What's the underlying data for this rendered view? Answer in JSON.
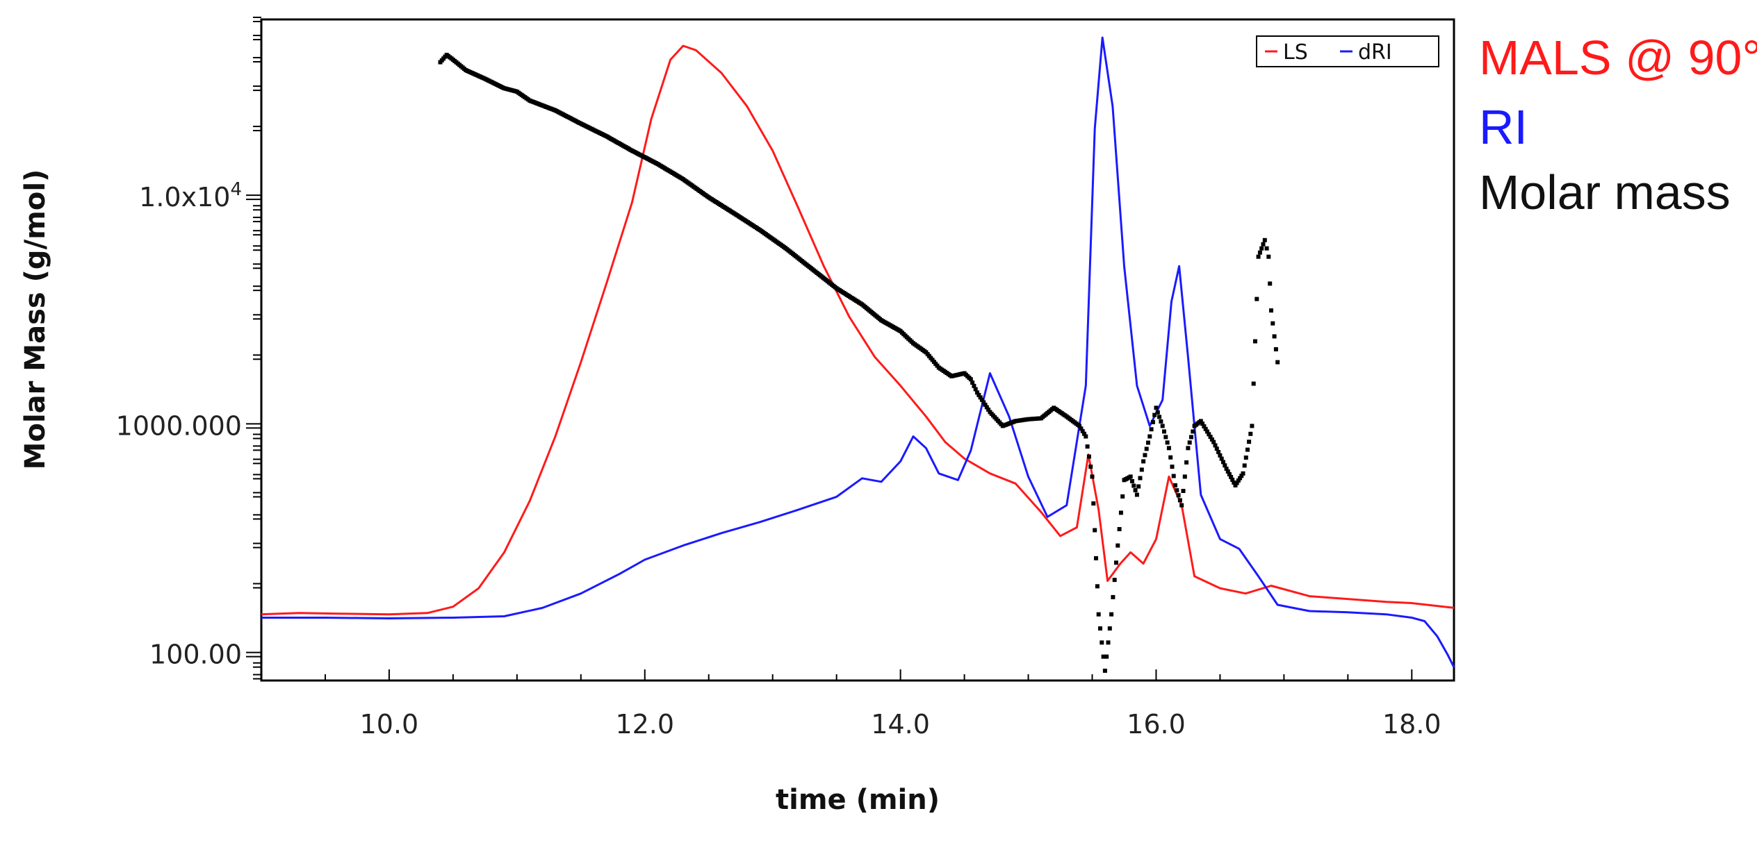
{
  "colors": {
    "ls": "#ff1a1a",
    "dri": "#1a1aff",
    "molar": "#000000",
    "axis": "#000000"
  },
  "side_labels": {
    "mals": "MALS @ 90°",
    "ri": "RI",
    "molar": "Molar mass"
  },
  "chart_data": {
    "type": "line",
    "title": "",
    "xlabel": "time (min)",
    "ylabel": "Molar Mass (g/mol)",
    "x_range": [
      9.0,
      18.33
    ],
    "y_scale": "log",
    "y_range": [
      77,
      60000
    ],
    "x_ticks": [
      {
        "value": 10.0,
        "label": "10.0"
      },
      {
        "value": 12.0,
        "label": "12.0"
      },
      {
        "value": 14.0,
        "label": "14.0"
      },
      {
        "value": 16.0,
        "label": "16.0"
      },
      {
        "value": 18.0,
        "label": "18.0"
      }
    ],
    "y_ticks": [
      {
        "value": 100,
        "label": "100.00"
      },
      {
        "value": 1000,
        "label": "1000.000"
      },
      {
        "value": 10000,
        "label_base": "1.0x10",
        "label_exp": "4"
      }
    ],
    "legend": {
      "position": "top-right",
      "entries": [
        {
          "name": "LS",
          "color": "#ff1a1a"
        },
        {
          "name": "dRI",
          "color": "#1a1aff"
        }
      ]
    },
    "series": [
      {
        "name": "LS",
        "color": "#ff1a1a",
        "style": "line",
        "points": [
          [
            9.0,
            150
          ],
          [
            9.3,
            152
          ],
          [
            9.6,
            151
          ],
          [
            10.0,
            150
          ],
          [
            10.3,
            152
          ],
          [
            10.5,
            162
          ],
          [
            10.7,
            195
          ],
          [
            10.9,
            280
          ],
          [
            11.1,
            470
          ],
          [
            11.3,
            900
          ],
          [
            11.5,
            1900
          ],
          [
            11.7,
            4200
          ],
          [
            11.9,
            9500
          ],
          [
            12.05,
            22000
          ],
          [
            12.2,
            40000
          ],
          [
            12.3,
            46000
          ],
          [
            12.4,
            44000
          ],
          [
            12.6,
            35000
          ],
          [
            12.8,
            25000
          ],
          [
            13.0,
            16000
          ],
          [
            13.2,
            9000
          ],
          [
            13.4,
            5000
          ],
          [
            13.6,
            3000
          ],
          [
            13.8,
            2000
          ],
          [
            14.0,
            1500
          ],
          [
            14.2,
            1100
          ],
          [
            14.35,
            850
          ],
          [
            14.5,
            720
          ],
          [
            14.7,
            620
          ],
          [
            14.9,
            560
          ],
          [
            15.1,
            420
          ],
          [
            15.25,
            330
          ],
          [
            15.38,
            360
          ],
          [
            15.47,
            750
          ],
          [
            15.55,
            430
          ],
          [
            15.62,
            210
          ],
          [
            15.72,
            250
          ],
          [
            15.8,
            280
          ],
          [
            15.9,
            250
          ],
          [
            16.0,
            320
          ],
          [
            16.1,
            600
          ],
          [
            16.2,
            450
          ],
          [
            16.3,
            220
          ],
          [
            16.5,
            195
          ],
          [
            16.7,
            185
          ],
          [
            16.9,
            200
          ],
          [
            17.2,
            180
          ],
          [
            17.5,
            175
          ],
          [
            17.8,
            170
          ],
          [
            18.0,
            168
          ],
          [
            18.33,
            160
          ]
        ]
      },
      {
        "name": "dRI",
        "color": "#1a1aff",
        "style": "line",
        "points": [
          [
            9.0,
            145
          ],
          [
            9.5,
            145
          ],
          [
            10.0,
            144
          ],
          [
            10.5,
            145
          ],
          [
            10.9,
            147
          ],
          [
            11.2,
            160
          ],
          [
            11.5,
            185
          ],
          [
            11.8,
            225
          ],
          [
            12.0,
            260
          ],
          [
            12.3,
            300
          ],
          [
            12.6,
            340
          ],
          [
            12.9,
            380
          ],
          [
            13.2,
            430
          ],
          [
            13.5,
            490
          ],
          [
            13.7,
            590
          ],
          [
            13.85,
            570
          ],
          [
            14.0,
            700
          ],
          [
            14.1,
            900
          ],
          [
            14.2,
            800
          ],
          [
            14.3,
            620
          ],
          [
            14.45,
            580
          ],
          [
            14.55,
            780
          ],
          [
            14.7,
            1700
          ],
          [
            14.85,
            1100
          ],
          [
            15.0,
            600
          ],
          [
            15.15,
            400
          ],
          [
            15.3,
            450
          ],
          [
            15.45,
            1500
          ],
          [
            15.52,
            20000
          ],
          [
            15.58,
            50000
          ],
          [
            15.66,
            25000
          ],
          [
            15.75,
            5000
          ],
          [
            15.85,
            1500
          ],
          [
            15.95,
            1000
          ],
          [
            16.05,
            1300
          ],
          [
            16.12,
            3500
          ],
          [
            16.18,
            5000
          ],
          [
            16.25,
            2000
          ],
          [
            16.35,
            500
          ],
          [
            16.5,
            320
          ],
          [
            16.65,
            290
          ],
          [
            16.8,
            220
          ],
          [
            16.95,
            165
          ],
          [
            17.2,
            155
          ],
          [
            17.5,
            153
          ],
          [
            17.8,
            150
          ],
          [
            18.0,
            145
          ],
          [
            18.1,
            140
          ],
          [
            18.2,
            120
          ],
          [
            18.28,
            100
          ],
          [
            18.33,
            88
          ]
        ]
      },
      {
        "name": "Molar mass",
        "color": "#000000",
        "style": "dots",
        "points": [
          [
            10.4,
            39000
          ],
          [
            10.45,
            42000
          ],
          [
            10.5,
            40000
          ],
          [
            10.6,
            36000
          ],
          [
            10.75,
            33000
          ],
          [
            10.9,
            30000
          ],
          [
            11.0,
            29000
          ],
          [
            11.1,
            26500
          ],
          [
            11.3,
            24000
          ],
          [
            11.5,
            21000
          ],
          [
            11.7,
            18500
          ],
          [
            11.9,
            16000
          ],
          [
            12.1,
            14000
          ],
          [
            12.3,
            12000
          ],
          [
            12.5,
            10000
          ],
          [
            12.7,
            8500
          ],
          [
            12.9,
            7200
          ],
          [
            13.1,
            6000
          ],
          [
            13.3,
            4900
          ],
          [
            13.5,
            4000
          ],
          [
            13.7,
            3400
          ],
          [
            13.85,
            2900
          ],
          [
            14.0,
            2600
          ],
          [
            14.1,
            2300
          ],
          [
            14.2,
            2100
          ],
          [
            14.3,
            1800
          ],
          [
            14.4,
            1650
          ],
          [
            14.5,
            1700
          ],
          [
            14.55,
            1600
          ],
          [
            14.6,
            1400
          ],
          [
            14.7,
            1150
          ],
          [
            14.8,
            1000
          ],
          [
            14.9,
            1050
          ],
          [
            15.0,
            1070
          ],
          [
            15.1,
            1080
          ],
          [
            15.2,
            1200
          ],
          [
            15.3,
            1100
          ],
          [
            15.4,
            1000
          ],
          [
            15.45,
            900
          ],
          [
            15.5,
            600
          ],
          [
            15.52,
            350
          ],
          [
            15.55,
            150
          ],
          [
            15.6,
            85
          ],
          [
            15.65,
            150
          ],
          [
            15.7,
            300
          ],
          [
            15.75,
            580
          ],
          [
            15.8,
            600
          ],
          [
            15.85,
            500
          ],
          [
            15.9,
            700
          ],
          [
            15.95,
            900
          ],
          [
            16.0,
            1200
          ],
          [
            16.05,
            1000
          ],
          [
            16.1,
            800
          ],
          [
            16.15,
            550
          ],
          [
            16.2,
            450
          ],
          [
            16.25,
            800
          ],
          [
            16.3,
            1000
          ],
          [
            16.35,
            1050
          ],
          [
            16.45,
            850
          ],
          [
            16.55,
            650
          ],
          [
            16.62,
            550
          ],
          [
            16.68,
            620
          ],
          [
            16.75,
            1000
          ],
          [
            16.8,
            5500
          ],
          [
            16.85,
            6500
          ],
          [
            16.88,
            5500
          ],
          [
            16.9,
            3200
          ],
          [
            16.95,
            1900
          ]
        ]
      }
    ]
  }
}
